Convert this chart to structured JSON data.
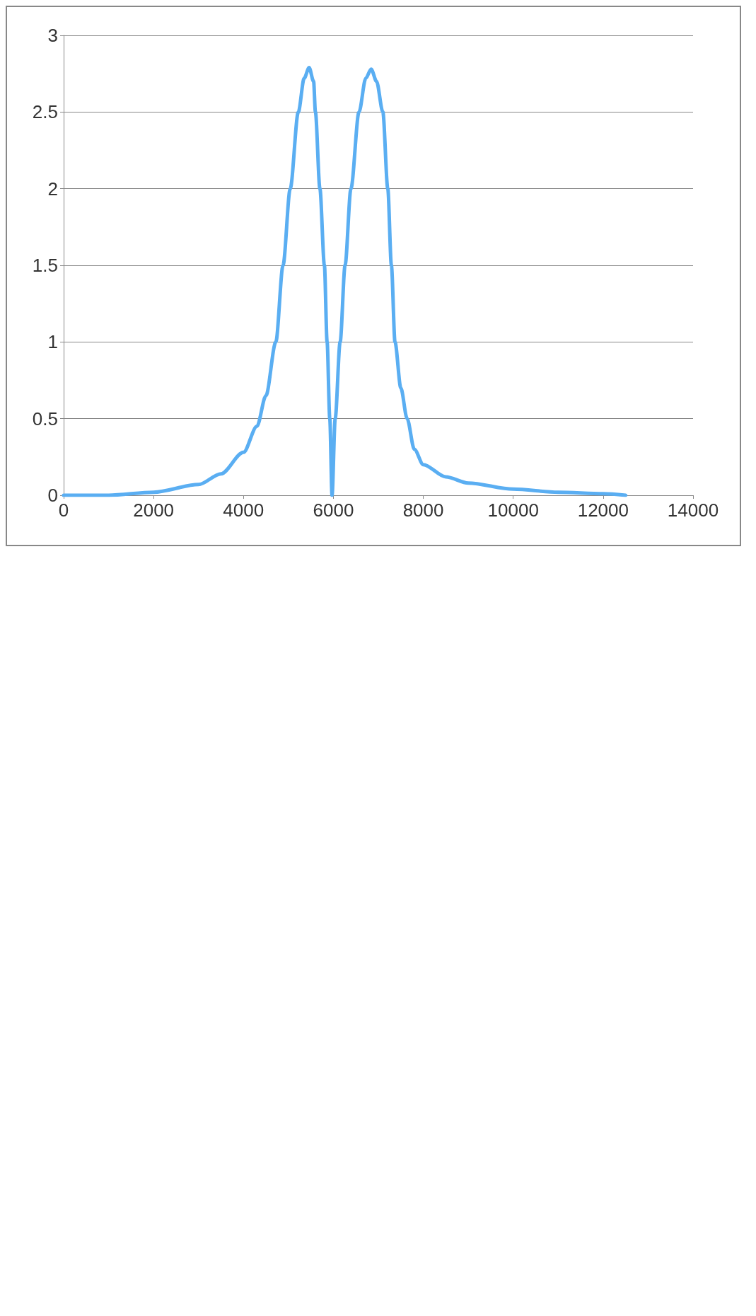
{
  "chart_data": {
    "type": "line",
    "x": [
      0,
      1000,
      2000,
      3000,
      3500,
      4000,
      4300,
      4500,
      4720,
      4880,
      5040,
      5220,
      5350,
      5460,
      5560,
      5600,
      5700,
      5800,
      5860,
      5920,
      5970,
      6040,
      6150,
      6260,
      6390,
      6570,
      6720,
      6840,
      6960,
      7100,
      7210,
      7290,
      7370,
      7500,
      7640,
      7800,
      8000,
      8500,
      9000,
      10000,
      11000,
      12000,
      12500
    ],
    "series": [
      {
        "color": "#5aaef2",
        "values": [
          0,
          0,
          0.02,
          0.07,
          0.14,
          0.28,
          0.45,
          0.65,
          1,
          1.5,
          2,
          2.5,
          2.72,
          2.79,
          2.7,
          2.5,
          2,
          1.5,
          1,
          0.5,
          0,
          0.5,
          1,
          1.5,
          2,
          2.5,
          2.72,
          2.78,
          2.7,
          2.5,
          2,
          1.5,
          1,
          0.7,
          0.5,
          0.3,
          0.2,
          0.12,
          0.08,
          0.04,
          0.02,
          0.01,
          0
        ]
      }
    ],
    "xlim": [
      0,
      14000
    ],
    "xticks": [
      0,
      2000,
      4000,
      6000,
      8000,
      10000,
      12000,
      14000
    ],
    "ylim": [
      0,
      3
    ],
    "yticks": [
      0,
      0.5,
      1,
      1.5,
      2,
      2.5,
      3
    ],
    "grid": "y",
    "marker": "none",
    "line_style": "solid"
  }
}
